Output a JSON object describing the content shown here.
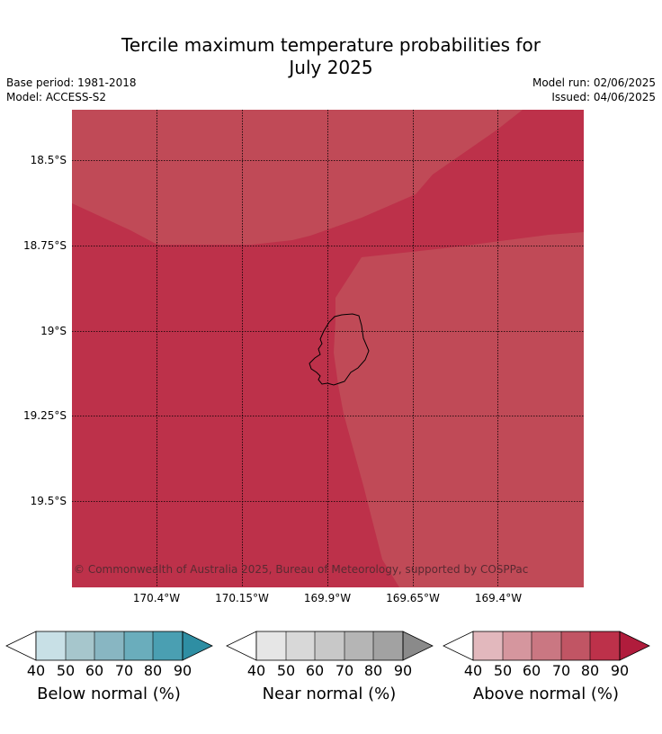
{
  "title": {
    "line1": "Tercile maximum temperature probabilities for",
    "line2": "July 2025"
  },
  "meta": {
    "base_period": "Base period: 1981-2018",
    "model": "Model: ACCESS-S2",
    "model_run": "Model run: 02/06/2025",
    "issued": "Issued: 04/06/2025"
  },
  "map": {
    "lat_labels": [
      "18.5°S",
      "18.75°S",
      "19°S",
      "19.25°S",
      "19.5°S"
    ],
    "lon_labels": [
      "170.4°W",
      "170.15°W",
      "169.9°W",
      "169.65°W",
      "169.4°W"
    ],
    "copyright": "© Commonwealth of Australia 2025, Bureau of Meteorology, supported by COSPPac",
    "colors": {
      "above_80_90": "#bd314a",
      "above_70_80": "#c04a57",
      "coastline": "#000000"
    }
  },
  "colorbars": [
    {
      "label": "Below normal (%)",
      "ticks": [
        "40",
        "50",
        "60",
        "70",
        "80",
        "90"
      ],
      "colors": [
        "#c8e0e6",
        "#a6c6cc",
        "#88b6c2",
        "#6aadbc",
        "#4a9fb2",
        "#2e8ea3"
      ]
    },
    {
      "label": "Near normal (%)",
      "ticks": [
        "40",
        "50",
        "60",
        "70",
        "80",
        "90"
      ],
      "colors": [
        "#e6e6e6",
        "#d8d8d8",
        "#c8c8c8",
        "#b5b5b5",
        "#a2a2a2",
        "#8a8a8a"
      ]
    },
    {
      "label": "Above normal (%)",
      "ticks": [
        "40",
        "50",
        "60",
        "70",
        "80",
        "90"
      ],
      "colors": [
        "#e2b8bd",
        "#d5969e",
        "#ca7782",
        "#c15564",
        "#bd314a",
        "#b01c3c"
      ]
    }
  ]
}
